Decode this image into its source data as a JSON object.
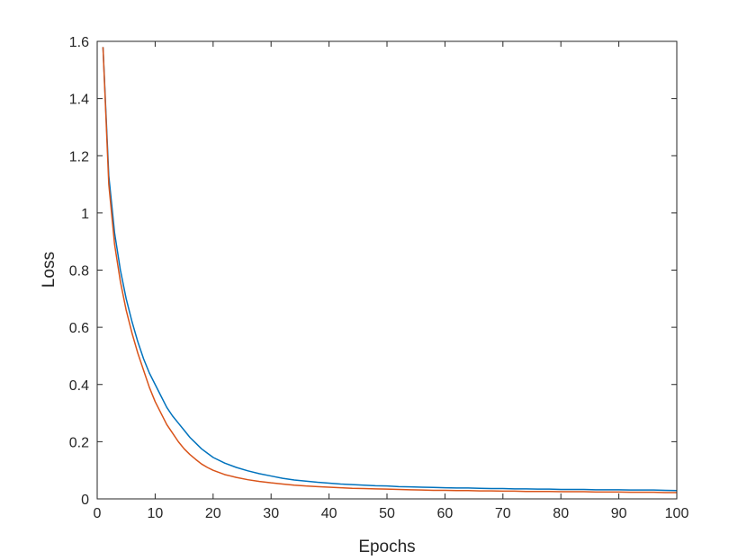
{
  "chart_data": {
    "type": "line",
    "title": "",
    "xlabel": "Epochs",
    "ylabel": "Loss",
    "xlim": [
      0,
      100
    ],
    "ylim": [
      0,
      1.6
    ],
    "xticks": [
      0,
      10,
      20,
      30,
      40,
      50,
      60,
      70,
      80,
      90,
      100
    ],
    "xtick_labels": [
      "0",
      "10",
      "20",
      "30",
      "40",
      "50",
      "60",
      "70",
      "80",
      "90",
      "100"
    ],
    "yticks": [
      0,
      0.2,
      0.4,
      0.6,
      0.8,
      1.0,
      1.2,
      1.4,
      1.6
    ],
    "ytick_labels": [
      "0",
      "0.2",
      "0.4",
      "0.6",
      "0.8",
      "1",
      "1.2",
      "1.4",
      "1.6"
    ],
    "grid": false,
    "legend": "none",
    "series": [
      {
        "color": "#0072BD",
        "x": [
          1,
          2,
          3,
          4,
          5,
          6,
          7,
          8,
          9,
          10,
          11,
          12,
          13,
          14,
          15,
          16,
          17,
          18,
          19,
          20,
          22,
          24,
          26,
          28,
          30,
          32,
          34,
          36,
          38,
          40,
          42,
          44,
          46,
          48,
          50,
          52,
          54,
          56,
          58,
          60,
          62,
          64,
          66,
          68,
          70,
          72,
          74,
          76,
          78,
          80,
          82,
          84,
          86,
          88,
          90,
          92,
          94,
          96,
          98,
          100
        ],
        "y": [
          1.58,
          1.13,
          0.93,
          0.8,
          0.7,
          0.62,
          0.55,
          0.49,
          0.44,
          0.4,
          0.36,
          0.32,
          0.29,
          0.265,
          0.24,
          0.215,
          0.195,
          0.175,
          0.16,
          0.145,
          0.125,
          0.11,
          0.098,
          0.088,
          0.08,
          0.072,
          0.066,
          0.062,
          0.058,
          0.055,
          0.052,
          0.05,
          0.048,
          0.046,
          0.045,
          0.043,
          0.042,
          0.041,
          0.04,
          0.039,
          0.038,
          0.038,
          0.037,
          0.036,
          0.036,
          0.035,
          0.035,
          0.034,
          0.034,
          0.033,
          0.033,
          0.033,
          0.032,
          0.032,
          0.032,
          0.031,
          0.031,
          0.031,
          0.03,
          0.029
        ]
      },
      {
        "color": "#D95319",
        "x": [
          1,
          2,
          3,
          4,
          5,
          6,
          7,
          8,
          9,
          10,
          11,
          12,
          13,
          14,
          15,
          16,
          17,
          18,
          19,
          20,
          22,
          24,
          26,
          28,
          30,
          32,
          34,
          36,
          38,
          40,
          42,
          44,
          46,
          48,
          50,
          52,
          54,
          56,
          58,
          60,
          62,
          64,
          66,
          68,
          70,
          72,
          74,
          76,
          78,
          80,
          82,
          84,
          86,
          88,
          90,
          92,
          94,
          96,
          98,
          100
        ],
        "y": [
          1.58,
          1.1,
          0.89,
          0.76,
          0.66,
          0.58,
          0.51,
          0.45,
          0.39,
          0.34,
          0.3,
          0.26,
          0.23,
          0.2,
          0.175,
          0.155,
          0.138,
          0.122,
          0.11,
          0.1,
          0.085,
          0.075,
          0.067,
          0.061,
          0.056,
          0.052,
          0.048,
          0.045,
          0.043,
          0.041,
          0.039,
          0.037,
          0.036,
          0.035,
          0.034,
          0.033,
          0.032,
          0.031,
          0.03,
          0.03,
          0.029,
          0.029,
          0.028,
          0.028,
          0.027,
          0.027,
          0.026,
          0.026,
          0.026,
          0.025,
          0.025,
          0.025,
          0.024,
          0.024,
          0.024,
          0.023,
          0.023,
          0.023,
          0.022,
          0.022
        ]
      }
    ]
  }
}
